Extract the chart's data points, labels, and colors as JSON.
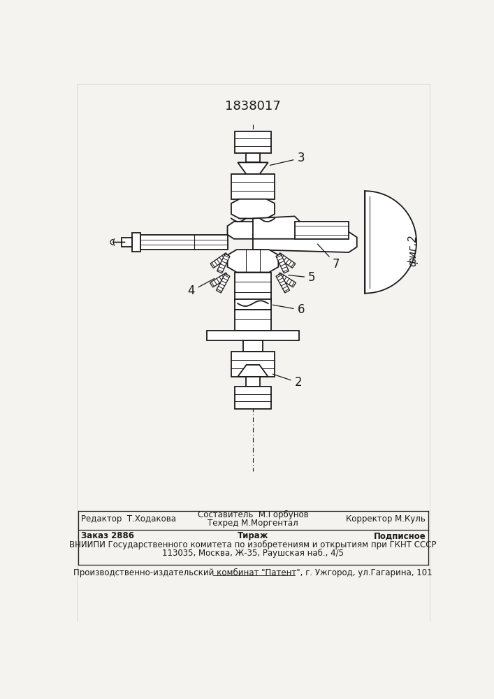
{
  "patent_number": "1838017",
  "fig_label": "фиг.2",
  "bg_color": "#f5f3ef",
  "line_color": "#1a1a1a",
  "editor_line": "Редактор  Т.Ходакова",
  "composer_line": "Составитель  М.Горбунов",
  "techred_line": "Техред М.Моргентал",
  "corrector_line": "Корректор М.Куль",
  "order_line": "Заказ 2886",
  "tirazh_line": "Тираж",
  "podpisnoe_line": "Подписное",
  "vniiipi_line": "ВНИИПИ Государственного комитета по изобретениям и открытиям при ГКНТ СССР",
  "address_line": "113035, Москва, Ж-35, Раушская наб., 4/5",
  "publisher_line": "Производственно-издательский комбинат \"Патент\", г. Ужгород, ул.Гагарина, 101"
}
